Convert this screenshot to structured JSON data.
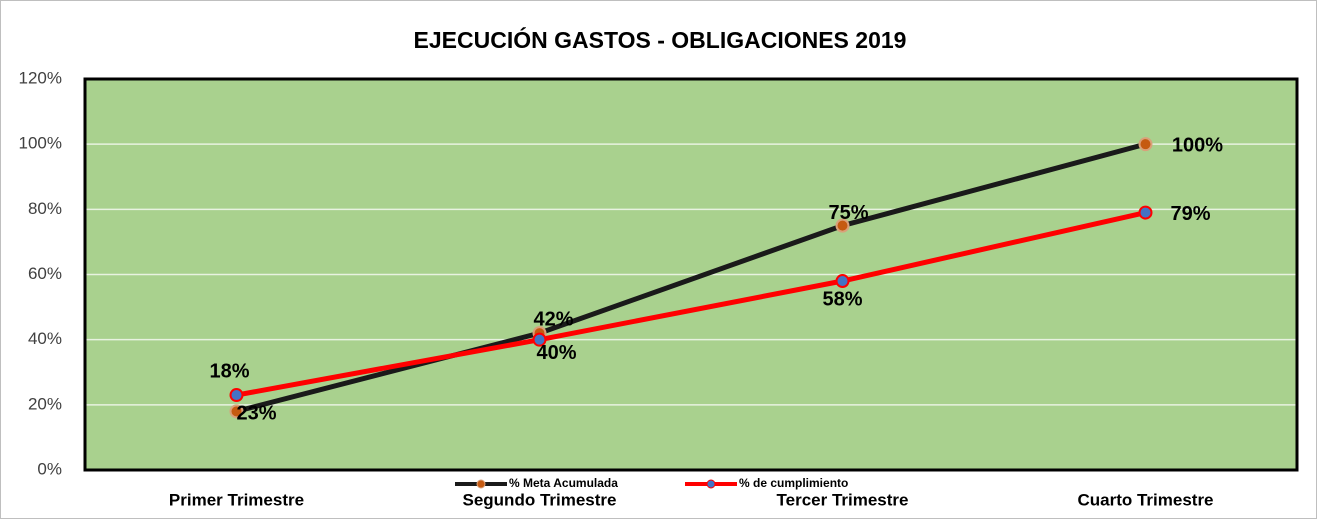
{
  "chart_data": {
    "type": "line",
    "title": "EJECUCIÓN GASTOS - OBLIGACIONES 2019",
    "categories": [
      "Primer Trimestre",
      "Segundo Trimestre",
      "Tercer Trimestre",
      "Cuarto Trimestre"
    ],
    "series": [
      {
        "name": "% Meta Acumulada",
        "color": "#1a1a1a",
        "marker_color": "#c55a11",
        "values": [
          18,
          42,
          75,
          100
        ],
        "value_labels": [
          "18%",
          "42%",
          "75%",
          "100%"
        ]
      },
      {
        "name": "% de cumplimiento",
        "color": "#ff0000",
        "marker_color": "#4472c4",
        "values": [
          23,
          40,
          58,
          79
        ],
        "value_labels": [
          "23%",
          "40%",
          "58%",
          "79%"
        ]
      }
    ],
    "ylim": [
      0,
      120
    ],
    "yticks": [
      {
        "value": 0,
        "label": "0%"
      },
      {
        "value": 20,
        "label": "20%"
      },
      {
        "value": 40,
        "label": "40%"
      },
      {
        "value": 60,
        "label": "60%"
      },
      {
        "value": 80,
        "label": "80%"
      },
      {
        "value": 100,
        "label": "100%"
      },
      {
        "value": 120,
        "label": "120%"
      }
    ],
    "grid": true,
    "plot_background": "#a9d18e",
    "legend": "bottom"
  }
}
